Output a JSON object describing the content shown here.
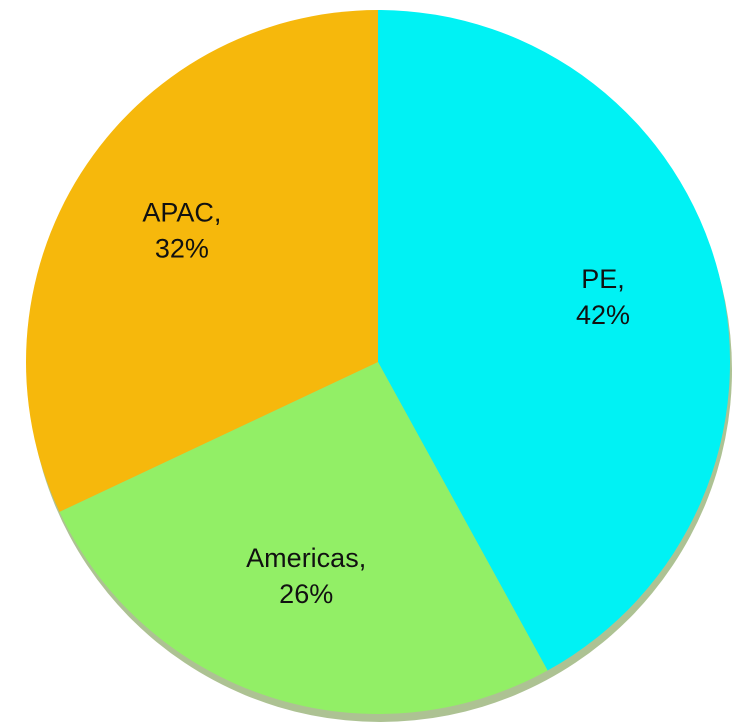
{
  "chart_data": {
    "type": "pie",
    "categories": [
      "PE",
      "Americas",
      "APAC"
    ],
    "values": [
      42,
      26,
      32
    ],
    "value_labels": [
      "42%",
      "26%",
      "32%"
    ],
    "colors": [
      "#00f2f4",
      "#92ef66",
      "#f6b80c"
    ]
  }
}
